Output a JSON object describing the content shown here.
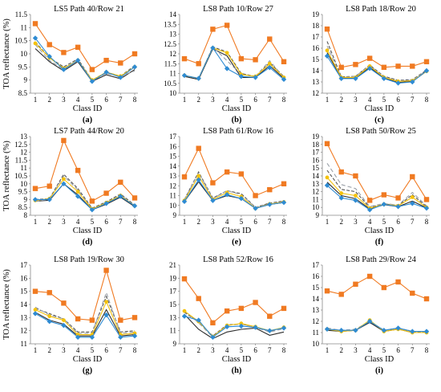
{
  "colors": {
    "s1": "#2e8bd3",
    "s2": "#f07a22",
    "s3": "#9aa0a8",
    "s4": "#f4c20d",
    "s5": "#555555",
    "s6": "#2b2b2b"
  },
  "chart_data": [
    {
      "type": "line",
      "title": "LS5 Path 40/Row 21",
      "panel": "(a)",
      "xlabel": "Class ID",
      "ylabel": "TOA reflectance (%)",
      "x": [
        1,
        2,
        3,
        4,
        5,
        6,
        7,
        8
      ],
      "ylim": [
        8.5,
        11.5
      ],
      "yticks": [
        8.5,
        9,
        9.5,
        10,
        10.5,
        11,
        11.5
      ],
      "series": [
        {
          "values": [
            10.6,
            9.9,
            9.4,
            9.75,
            8.95,
            9.3,
            9.1,
            9.5
          ]
        },
        {
          "values": [
            11.15,
            10.35,
            10.05,
            10.25,
            9.4,
            9.75,
            9.65,
            10.0
          ]
        },
        {
          "values": [
            10.35,
            9.75,
            9.4,
            9.75,
            9.0,
            9.25,
            9.15,
            9.35
          ]
        },
        {
          "values": [
            10.4,
            9.85,
            9.45,
            9.75,
            9.0,
            9.3,
            9.15,
            9.5
          ]
        },
        {
          "values": [
            10.45,
            9.85,
            9.5,
            9.8,
            9.0,
            9.3,
            9.15,
            9.55
          ]
        },
        {
          "values": [
            10.2,
            9.7,
            9.35,
            9.7,
            8.95,
            9.2,
            9.05,
            9.4
          ]
        }
      ]
    },
    {
      "type": "line",
      "title": "LS8 Path 10/Row 27",
      "panel": "(b)",
      "xlabel": "Class ID",
      "ylabel": "",
      "x": [
        1,
        2,
        3,
        4,
        5,
        6,
        7,
        8
      ],
      "ylim": [
        10,
        14
      ],
      "yticks": [
        10,
        10.5,
        11,
        11.5,
        12,
        12.5,
        13,
        13.5,
        14
      ],
      "series": [
        {
          "values": [
            10.9,
            10.75,
            12.3,
            11.25,
            10.85,
            10.8,
            11.3,
            10.7
          ]
        },
        {
          "values": [
            11.75,
            11.5,
            13.25,
            13.45,
            11.75,
            11.7,
            12.75,
            11.6
          ]
        },
        {
          "values": [
            10.9,
            10.75,
            12.35,
            11.65,
            10.95,
            10.85,
            11.65,
            10.8
          ]
        },
        {
          "values": [
            10.9,
            10.75,
            12.3,
            12.05,
            10.95,
            10.85,
            11.5,
            10.8
          ]
        },
        {
          "values": [
            10.9,
            10.75,
            12.35,
            12.1,
            11.0,
            10.85,
            11.55,
            10.85
          ]
        },
        {
          "values": [
            10.85,
            10.7,
            12.25,
            11.9,
            10.8,
            10.8,
            11.4,
            10.75
          ]
        }
      ]
    },
    {
      "type": "line",
      "title": "LS8 Path 18/Row 20",
      "panel": "(c)",
      "xlabel": "Class ID",
      "ylabel": "",
      "x": [
        1,
        2,
        3,
        4,
        5,
        6,
        7,
        8
      ],
      "ylim": [
        12,
        19
      ],
      "yticks": [
        12,
        13,
        14,
        15,
        16,
        17,
        18,
        19
      ],
      "series": [
        {
          "values": [
            15.3,
            13.3,
            13.3,
            14.2,
            13.3,
            12.9,
            13.0,
            14.0
          ]
        },
        {
          "values": [
            17.7,
            14.3,
            14.55,
            15.1,
            14.3,
            14.4,
            14.4,
            14.8
          ]
        },
        {
          "values": [
            16.2,
            13.4,
            13.5,
            14.45,
            13.45,
            13.1,
            13.15,
            14.0
          ]
        },
        {
          "values": [
            15.8,
            13.4,
            13.4,
            14.4,
            13.4,
            13.05,
            13.1,
            13.95
          ]
        },
        {
          "values": [
            16.6,
            13.45,
            13.5,
            14.5,
            13.5,
            13.15,
            13.2,
            14.05
          ]
        },
        {
          "values": [
            15.6,
            13.35,
            13.35,
            14.3,
            13.35,
            12.95,
            13.05,
            13.95
          ]
        }
      ]
    },
    {
      "type": "line",
      "title": "LS7 Path 44/Row 20",
      "panel": "(d)",
      "xlabel": "Class ID",
      "ylabel": "TOA reflectance (%)",
      "x": [
        1,
        2,
        3,
        4,
        5,
        6,
        7,
        8
      ],
      "ylim": [
        8,
        13
      ],
      "yticks": [
        8,
        8.5,
        9,
        9.5,
        10,
        10.5,
        11,
        11.5,
        12,
        12.5,
        13
      ],
      "series": [
        {
          "values": [
            9.0,
            9.0,
            10.0,
            9.2,
            8.35,
            8.75,
            9.2,
            8.6
          ]
        },
        {
          "values": [
            9.7,
            9.85,
            12.75,
            10.85,
            8.9,
            9.4,
            10.1,
            9.1
          ]
        },
        {
          "values": [
            8.9,
            9.0,
            10.5,
            9.6,
            8.4,
            8.8,
            9.3,
            8.6
          ]
        },
        {
          "values": [
            8.95,
            9.05,
            10.3,
            9.5,
            8.4,
            8.8,
            9.25,
            8.6
          ]
        },
        {
          "values": [
            9.0,
            9.05,
            10.6,
            9.7,
            8.45,
            8.85,
            9.35,
            8.65
          ]
        },
        {
          "values": [
            8.9,
            8.95,
            10.0,
            9.3,
            8.35,
            8.7,
            9.15,
            8.55
          ]
        }
      ]
    },
    {
      "type": "line",
      "title": "LS8 Path 61/Row 16",
      "panel": "(e)",
      "xlabel": "Class ID",
      "ylabel": "",
      "x": [
        1,
        2,
        3,
        4,
        5,
        6,
        7,
        8
      ],
      "ylim": [
        9,
        17
      ],
      "yticks": [
        9,
        10,
        11,
        12,
        13,
        14,
        15,
        16,
        17
      ],
      "series": [
        {
          "values": [
            10.4,
            12.6,
            10.5,
            11.1,
            10.7,
            9.7,
            10.1,
            10.3
          ]
        },
        {
          "values": [
            12.9,
            15.8,
            12.3,
            13.4,
            13.2,
            11.0,
            11.6,
            12.2
          ]
        },
        {
          "values": [
            10.6,
            13.3,
            10.7,
            11.5,
            11.1,
            9.8,
            10.2,
            10.4
          ]
        },
        {
          "values": [
            10.5,
            13.0,
            10.6,
            11.3,
            10.9,
            9.7,
            10.15,
            10.35
          ]
        },
        {
          "values": [
            10.6,
            13.4,
            10.75,
            11.5,
            11.2,
            9.8,
            10.25,
            10.45
          ]
        },
        {
          "values": [
            10.4,
            12.4,
            10.5,
            11.0,
            10.7,
            9.7,
            10.1,
            10.3
          ]
        }
      ]
    },
    {
      "type": "line",
      "title": "LS8 Path 50/Row 25",
      "panel": "(f)",
      "xlabel": "Class ID",
      "ylabel": "",
      "x": [
        1,
        2,
        3,
        4,
        5,
        6,
        7,
        8
      ],
      "ylim": [
        9,
        19
      ],
      "yticks": [
        9,
        10,
        11,
        12,
        13,
        14,
        15,
        16,
        17,
        18,
        19
      ],
      "series": [
        {
          "values": [
            12.8,
            11.2,
            10.9,
            9.7,
            10.4,
            10.1,
            10.5,
            9.9
          ]
        },
        {
          "values": [
            18.1,
            14.5,
            14.0,
            10.9,
            11.6,
            11.2,
            13.9,
            11.0
          ]
        },
        {
          "values": [
            15.6,
            12.9,
            12.4,
            10.1,
            10.5,
            10.3,
            11.9,
            10.2
          ]
        },
        {
          "values": [
            13.8,
            11.8,
            11.5,
            9.9,
            10.4,
            10.2,
            11.3,
            10.0
          ]
        },
        {
          "values": [
            14.7,
            12.3,
            12.0,
            10.0,
            10.45,
            10.25,
            11.6,
            10.1
          ]
        },
        {
          "values": [
            13.2,
            11.5,
            11.1,
            9.8,
            10.35,
            10.1,
            10.8,
            9.95
          ]
        }
      ]
    },
    {
      "type": "line",
      "title": "LS8 Path 19/Row 30",
      "panel": "(g)",
      "xlabel": "Class ID",
      "ylabel": "TOA reflectance (%)",
      "x": [
        1,
        2,
        3,
        4,
        5,
        6,
        7,
        8
      ],
      "ylim": [
        11,
        17
      ],
      "yticks": [
        11,
        12,
        13,
        14,
        15,
        16,
        17
      ],
      "series": [
        {
          "values": [
            13.3,
            12.7,
            12.4,
            11.5,
            11.5,
            13.2,
            11.5,
            11.6
          ]
        },
        {
          "values": [
            15.0,
            14.9,
            14.1,
            12.9,
            12.8,
            16.6,
            12.8,
            13.0
          ]
        },
        {
          "values": [
            13.8,
            13.2,
            12.9,
            11.8,
            11.8,
            14.9,
            11.8,
            11.9
          ]
        },
        {
          "values": [
            13.6,
            13.1,
            12.8,
            11.7,
            11.7,
            14.2,
            11.7,
            11.8
          ]
        },
        {
          "values": [
            13.7,
            13.3,
            12.9,
            11.9,
            11.9,
            14.6,
            11.9,
            12.0
          ]
        },
        {
          "values": [
            13.4,
            12.8,
            12.5,
            11.6,
            11.6,
            13.6,
            11.6,
            11.7
          ]
        }
      ]
    },
    {
      "type": "line",
      "title": "LS8 Path 52/Row 16",
      "panel": "(h)",
      "xlabel": "Class ID",
      "ylabel": "",
      "x": [
        1,
        2,
        3,
        4,
        5,
        6,
        7,
        8
      ],
      "ylim": [
        9,
        21
      ],
      "yticks": [
        9,
        11,
        13,
        15,
        17,
        19,
        21
      ],
      "series": [
        {
          "values": [
            13.2,
            12.6,
            10.0,
            11.6,
            11.7,
            11.5,
            11.0,
            11.4
          ]
        },
        {
          "values": [
            18.9,
            15.9,
            12.2,
            14.0,
            14.4,
            15.3,
            13.2,
            14.4
          ]
        },
        {
          "values": [
            14.0,
            12.2,
            10.0,
            11.8,
            12.0,
            11.5,
            10.8,
            11.3
          ]
        },
        {
          "values": [
            14.0,
            12.4,
            10.1,
            11.8,
            12.1,
            11.6,
            11.0,
            11.5
          ]
        },
        {
          "values": [
            13.8,
            12.3,
            10.2,
            11.9,
            12.0,
            11.6,
            10.9,
            11.5
          ]
        },
        {
          "values": [
            13.5,
            11.2,
            9.8,
            10.8,
            11.2,
            11.4,
            10.3,
            10.8
          ]
        }
      ]
    },
    {
      "type": "line",
      "title": "LS8 Path 29/Row 24",
      "panel": "(i)",
      "xlabel": "Class ID",
      "ylabel": "",
      "x": [
        1,
        2,
        3,
        4,
        5,
        6,
        7,
        8
      ],
      "ylim": [
        10,
        17
      ],
      "yticks": [
        10,
        11,
        12,
        13,
        14,
        15,
        16,
        17
      ],
      "series": [
        {
          "values": [
            11.3,
            11.2,
            11.2,
            12.0,
            11.2,
            11.4,
            11.1,
            11.1
          ]
        },
        {
          "values": [
            14.7,
            14.4,
            15.3,
            16.0,
            15.0,
            15.5,
            14.5,
            14.0
          ]
        },
        {
          "values": [
            11.4,
            11.2,
            11.3,
            12.0,
            11.2,
            11.4,
            11.1,
            11.1
          ]
        },
        {
          "values": [
            11.3,
            11.1,
            11.2,
            12.1,
            11.1,
            11.3,
            11.0,
            11.0
          ]
        },
        {
          "values": [
            11.3,
            11.2,
            11.2,
            12.0,
            11.2,
            11.4,
            11.1,
            11.0
          ]
        },
        {
          "values": [
            11.2,
            11.1,
            11.2,
            11.9,
            11.1,
            11.3,
            11.0,
            11.0
          ]
        }
      ]
    }
  ]
}
